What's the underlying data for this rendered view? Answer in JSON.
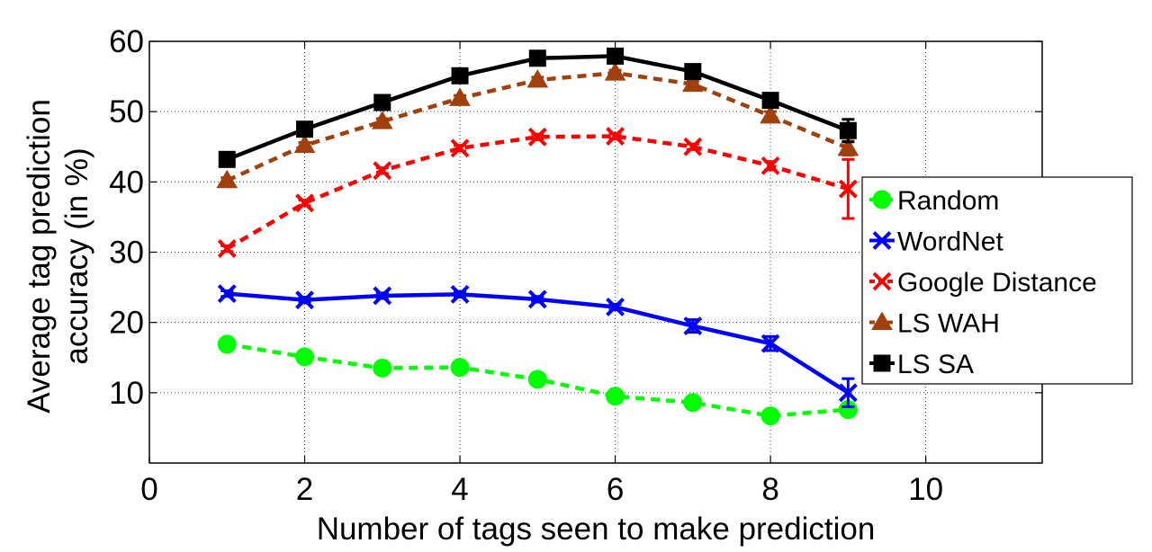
{
  "chart_data": {
    "type": "line",
    "xlabel": "Number of tags seen to make prediction",
    "ylabel_lines": [
      "Average tag prediction",
      "accuracy (in %)"
    ],
    "xlim": [
      0,
      11.5
    ],
    "ylim": [
      0,
      60
    ],
    "xticks": [
      0,
      2,
      4,
      6,
      8,
      10
    ],
    "yticks": [
      10,
      20,
      30,
      40,
      50,
      60
    ],
    "x": [
      1,
      2,
      3,
      4,
      5,
      6,
      7,
      8,
      9
    ],
    "grid": true,
    "legend_position": "right",
    "series": [
      {
        "name": "Random",
        "color": "#00ff00",
        "line_style": "dashed",
        "marker": "circle",
        "values": [
          16.9,
          15.1,
          13.5,
          13.6,
          11.9,
          9.5,
          8.6,
          6.7,
          7.6
        ],
        "errors": [
          0.3,
          0.3,
          0.3,
          0.3,
          0.3,
          0.3,
          0.3,
          0.3,
          0.5
        ]
      },
      {
        "name": "WordNet",
        "color": "#0000ff",
        "line_style": "solid",
        "marker": "x",
        "values": [
          24.1,
          23.2,
          23.8,
          24.0,
          23.3,
          22.2,
          19.5,
          17.0,
          10.0
        ],
        "errors": [
          0.4,
          0.4,
          0.4,
          0.4,
          0.4,
          0.4,
          0.9,
          1.0,
          2.0
        ]
      },
      {
        "name": "Google Distance",
        "color": "#ff0000",
        "line_style": "dashed",
        "marker": "x",
        "values": [
          30.5,
          37.0,
          41.6,
          44.8,
          46.4,
          46.5,
          45.0,
          42.3,
          39.0
        ],
        "errors": [
          0.4,
          0.4,
          0.4,
          0.4,
          0.4,
          0.4,
          0.4,
          0.6,
          4.2
        ]
      },
      {
        "name": "LS WAH",
        "color": "#a0410d",
        "line_style": "dashed",
        "marker": "triangle",
        "values": [
          40.2,
          45.2,
          48.6,
          51.9,
          54.5,
          55.5,
          53.9,
          49.4,
          44.8
        ],
        "errors": [
          0.4,
          0.4,
          0.4,
          0.4,
          0.4,
          0.4,
          0.4,
          0.6,
          1.0
        ]
      },
      {
        "name": "LS SA",
        "color": "#000000",
        "line_style": "solid",
        "marker": "square",
        "values": [
          43.2,
          47.5,
          51.3,
          55.1,
          57.6,
          57.9,
          55.7,
          51.6,
          47.3
        ],
        "errors": [
          0.4,
          0.4,
          0.4,
          0.4,
          0.4,
          0.4,
          0.4,
          0.6,
          1.6
        ]
      }
    ]
  }
}
